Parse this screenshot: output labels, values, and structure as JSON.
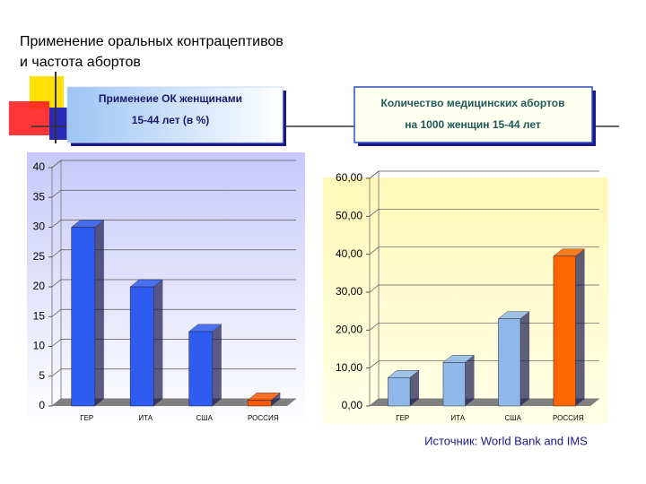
{
  "title": [
    "Применение оральных контрацептивов",
    "и частота абортов"
  ],
  "source": "Источник: World Bank and IMS",
  "chart_data": [
    {
      "type": "bar",
      "title": [
        "Применеие ОК женщинами",
        "15-44  лет (в %)"
      ],
      "categories": [
        "ГЕР",
        "ИТА",
        "США",
        "РОССИЯ"
      ],
      "values": [
        30,
        20,
        12.5,
        1
      ],
      "colors": [
        "#2f5cf0",
        "#2f5cf0",
        "#2f5cf0",
        "#ff5a00"
      ],
      "ylim": [
        0,
        40
      ],
      "yticks": [
        0,
        5,
        10,
        15,
        20,
        25,
        30,
        35,
        40
      ],
      "grid": true
    },
    {
      "type": "bar",
      "title": [
        "Количество медицинских абортов",
        "на 1000 женщин 15-44 лет"
      ],
      "categories": [
        "ГЕР",
        "ИТА",
        "США",
        "РОССИЯ"
      ],
      "values": [
        7.5,
        11.5,
        23,
        39.5
      ],
      "colors": [
        "#8fb8e8",
        "#8fb8e8",
        "#8fb8e8",
        "#ff6600"
      ],
      "ylim": [
        0,
        60
      ],
      "yticks": [
        {
          "value": 0,
          "label": "0,00"
        },
        {
          "value": 10,
          "label": "10,00"
        },
        {
          "value": 20,
          "label": "20,00"
        },
        {
          "value": 30,
          "label": "30,00"
        },
        {
          "value": 40,
          "label": "40,00"
        },
        {
          "value": 50,
          "label": "50,00"
        },
        {
          "value": 60,
          "label": "60,00"
        }
      ],
      "grid": true
    }
  ]
}
